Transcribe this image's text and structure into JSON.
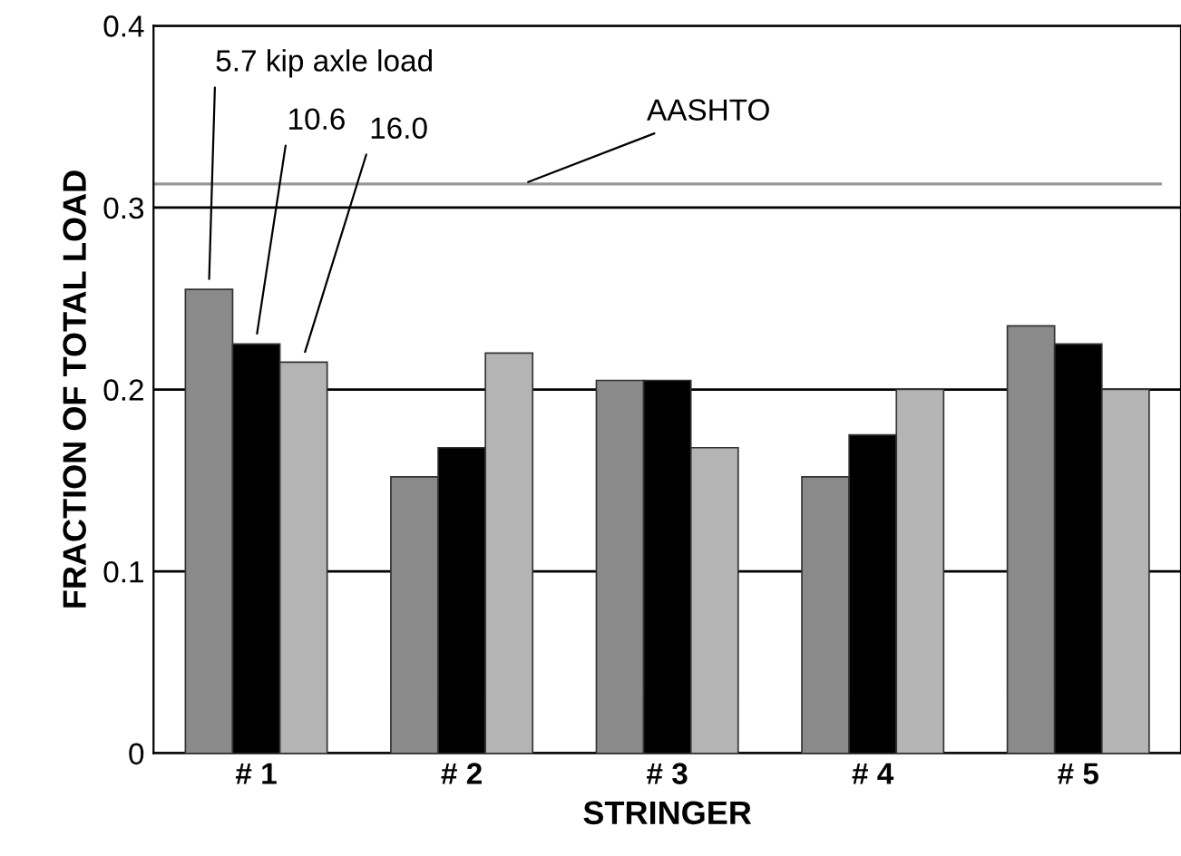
{
  "chart_data": {
    "type": "bar",
    "xlabel": "STRINGER",
    "ylabel": "FRACTION OF TOTAL LOAD",
    "categories": [
      "# 1",
      "# 2",
      "# 3",
      "# 4",
      "# 5"
    ],
    "series": [
      {
        "name": "5.7 kip axle load",
        "color": "#8a8a8a",
        "values": [
          0.255,
          0.152,
          0.205,
          0.152,
          0.235
        ]
      },
      {
        "name": "10.6",
        "color": "#000000",
        "values": [
          0.225,
          0.168,
          0.205,
          0.175,
          0.225
        ]
      },
      {
        "name": "16.0",
        "color": "#b4b4b4",
        "values": [
          0.215,
          0.22,
          0.168,
          0.2,
          0.2
        ]
      }
    ],
    "ylim": [
      0,
      0.4
    ],
    "yticks": [
      0,
      0.1,
      0.2,
      0.3,
      0.4
    ],
    "grid": "y",
    "legend": false,
    "ref_lines": [
      {
        "axis": "y",
        "value": 0.313,
        "label": "AASHTO",
        "color": "#999999"
      }
    ]
  }
}
